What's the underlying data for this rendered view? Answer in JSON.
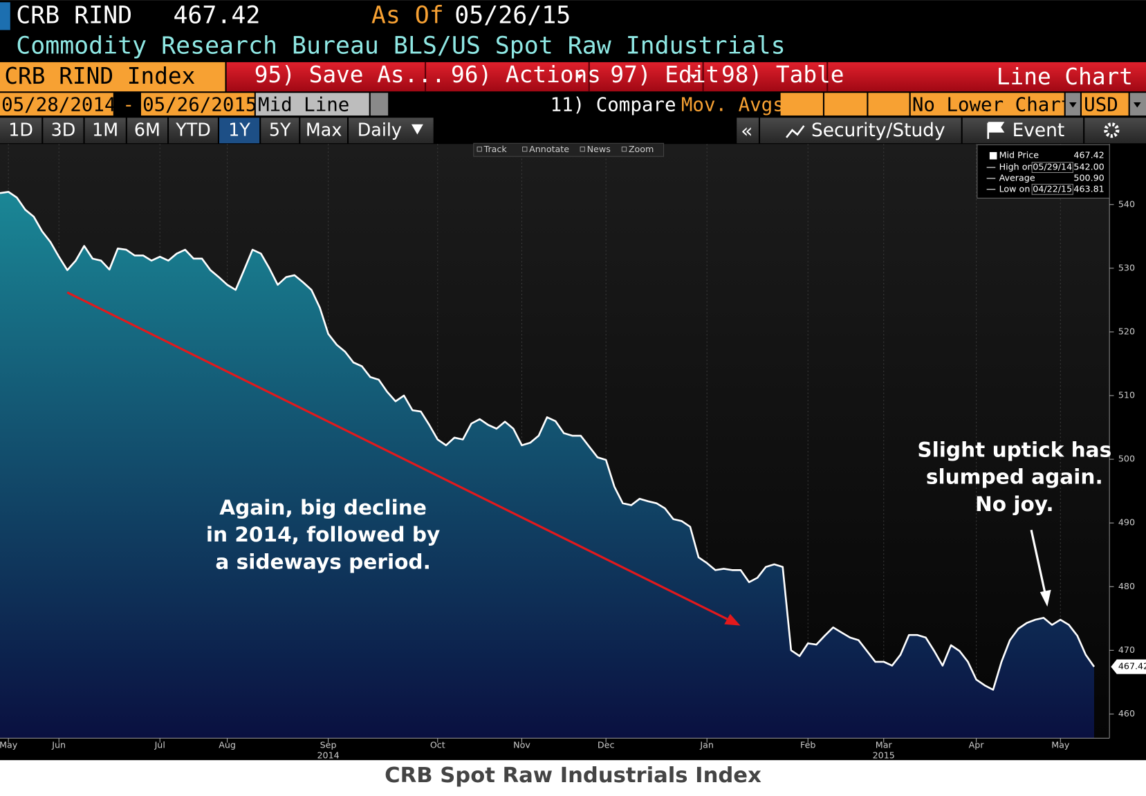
{
  "header": {
    "ticker": "CRB RIND",
    "price": "467.42",
    "as_of_label": "As Of",
    "as_of_date": "05/26/15",
    "description": "Commodity Research Bureau BLS/US Spot Raw Industrials"
  },
  "toolbar": {
    "security": "CRB RIND Index",
    "buttons": [
      "95) Save As...",
      "96) Actions",
      "97) Edit",
      "98) Table"
    ],
    "chart_kind": "Line Chart"
  },
  "settings": {
    "start_date": "05/28/2014",
    "separator": "-",
    "end_date": "05/26/2015",
    "mode": "Mid Line",
    "compare": "11) Compare",
    "overlay": "Mov. Avgs",
    "lower_chart": "No Lower Chart",
    "currency": "USD"
  },
  "range_buttons": {
    "items": [
      "1D",
      "3D",
      "1M",
      "6M",
      "YTD",
      "1Y",
      "5Y",
      "Max"
    ],
    "selected": "1Y",
    "frequency": "Daily"
  },
  "right_buttons": {
    "collapse": "«",
    "study": "Security/Study",
    "event": "Event"
  },
  "mini_toolbar": [
    "Track",
    "Annotate",
    "News",
    "Zoom"
  ],
  "chart_data": {
    "type": "line",
    "title": "CRB Spot Raw Industrials Index",
    "categories": [
      null,
      "May",
      null,
      null,
      null,
      null,
      null,
      "Jun",
      null,
      null,
      null,
      null,
      null,
      null,
      null,
      null,
      null,
      null,
      null,
      "Jul",
      null,
      null,
      null,
      null,
      null,
      null,
      null,
      "Aug",
      null,
      null,
      null,
      null,
      null,
      null,
      null,
      null,
      null,
      null,
      null,
      "Sep",
      null,
      null,
      null,
      null,
      null,
      null,
      null,
      null,
      null,
      null,
      null,
      null,
      "Oct",
      null,
      null,
      null,
      null,
      null,
      null,
      null,
      null,
      null,
      "Nov",
      null,
      null,
      null,
      null,
      null,
      null,
      null,
      null,
      null,
      "Dec",
      null,
      null,
      null,
      null,
      null,
      null,
      null,
      null,
      null,
      null,
      null,
      "Jan",
      null,
      null,
      null,
      null,
      null,
      null,
      null,
      null,
      null,
      null,
      null,
      "Feb",
      null,
      null,
      null,
      null,
      null,
      null,
      null,
      null,
      "Mar",
      null,
      null,
      null,
      null,
      null,
      null,
      null,
      null,
      null,
      null,
      "Apr",
      null,
      null,
      null,
      null,
      null,
      null,
      null,
      null,
      null,
      "May",
      null,
      null,
      null,
      null
    ],
    "category_years": [
      null,
      null,
      null,
      null,
      null,
      null,
      null,
      null,
      null,
      null,
      null,
      null,
      null,
      null,
      null,
      null,
      null,
      null,
      null,
      null,
      null,
      null,
      null,
      null,
      null,
      null,
      null,
      null,
      null,
      null,
      null,
      null,
      null,
      null,
      null,
      null,
      null,
      null,
      null,
      "2014",
      null,
      null,
      null,
      null,
      null,
      null,
      null,
      null,
      null,
      null,
      null,
      null,
      null,
      null,
      null,
      null,
      null,
      null,
      null,
      null,
      null,
      null,
      null,
      null,
      null,
      null,
      null,
      null,
      null,
      null,
      null,
      null,
      null,
      null,
      null,
      null,
      null,
      null,
      null,
      null,
      null,
      null,
      null,
      null,
      null,
      null,
      null,
      null,
      null,
      null,
      null,
      null,
      null,
      null,
      null,
      null,
      null,
      null,
      null,
      null,
      null,
      null,
      null,
      null,
      null,
      "2015",
      null,
      null,
      null,
      null,
      null,
      null,
      null,
      null,
      null,
      null,
      null,
      null,
      null,
      null,
      null,
      null,
      null,
      null,
      null,
      null,
      null,
      null,
      null,
      null,
      null
    ],
    "series": [
      {
        "name": "Mid Price",
        "color": "#ffffff",
        "values": [
          541.8,
          542.0,
          541.1,
          539.2,
          538.1,
          535.8,
          534.1,
          531.8,
          529.7,
          531.2,
          533.5,
          531.5,
          531.2,
          529.8,
          533.1,
          532.9,
          532.0,
          532.0,
          531.2,
          531.8,
          531.2,
          532.3,
          532.9,
          531.5,
          531.5,
          529.7,
          528.6,
          527.4,
          526.6,
          529.7,
          532.9,
          532.3,
          530.0,
          527.4,
          528.6,
          528.9,
          527.8,
          526.6,
          523.8,
          519.7,
          518.0,
          516.9,
          515.2,
          514.6,
          512.9,
          512.5,
          510.6,
          509.1,
          510.0,
          507.7,
          507.5,
          505.4,
          503.1,
          502.2,
          503.4,
          503.1,
          505.6,
          506.3,
          505.4,
          504.8,
          505.9,
          504.8,
          502.2,
          502.6,
          503.7,
          506.6,
          506.0,
          504.1,
          503.7,
          503.7,
          502.0,
          500.3,
          499.9,
          495.7,
          493.1,
          492.8,
          493.8,
          493.4,
          493.1,
          492.3,
          490.6,
          490.3,
          489.4,
          484.6,
          483.7,
          482.6,
          482.8,
          482.6,
          482.6,
          480.7,
          481.4,
          483.1,
          483.5,
          483.1,
          470.0,
          469.1,
          471.1,
          470.9,
          472.3,
          473.6,
          472.8,
          472.0,
          471.6,
          469.9,
          468.2,
          468.2,
          467.6,
          469.3,
          472.4,
          472.4,
          472.0,
          469.9,
          467.6,
          470.8,
          469.9,
          468.2,
          465.4,
          464.5,
          463.81,
          468.2,
          471.6,
          473.4,
          474.3,
          474.8,
          475.1,
          474.0,
          474.8,
          474.0,
          472.3,
          469.3,
          467.42
        ]
      }
    ],
    "last_value_label": "467.42",
    "ylim": [
      456.2,
      549.5
    ],
    "yticks": [
      460,
      470,
      480,
      490,
      500,
      510,
      520,
      530,
      540
    ],
    "area_colors": [
      "#1a8796",
      "#0a1040"
    ],
    "legend": {
      "stats": [
        {
          "label": "High on",
          "date": "05/29/14",
          "value": "542.00"
        },
        {
          "label": "Average",
          "value": "500.90"
        },
        {
          "label": "Low on",
          "date": "04/22/15",
          "value": "463.81"
        }
      ]
    },
    "annotations": [
      {
        "lines": [
          "Again, big decline",
          "in 2014, followed by",
          "a sideways period."
        ]
      },
      {
        "lines": [
          "Slight uptick has",
          "slumped again.",
          "No joy."
        ]
      }
    ]
  }
}
